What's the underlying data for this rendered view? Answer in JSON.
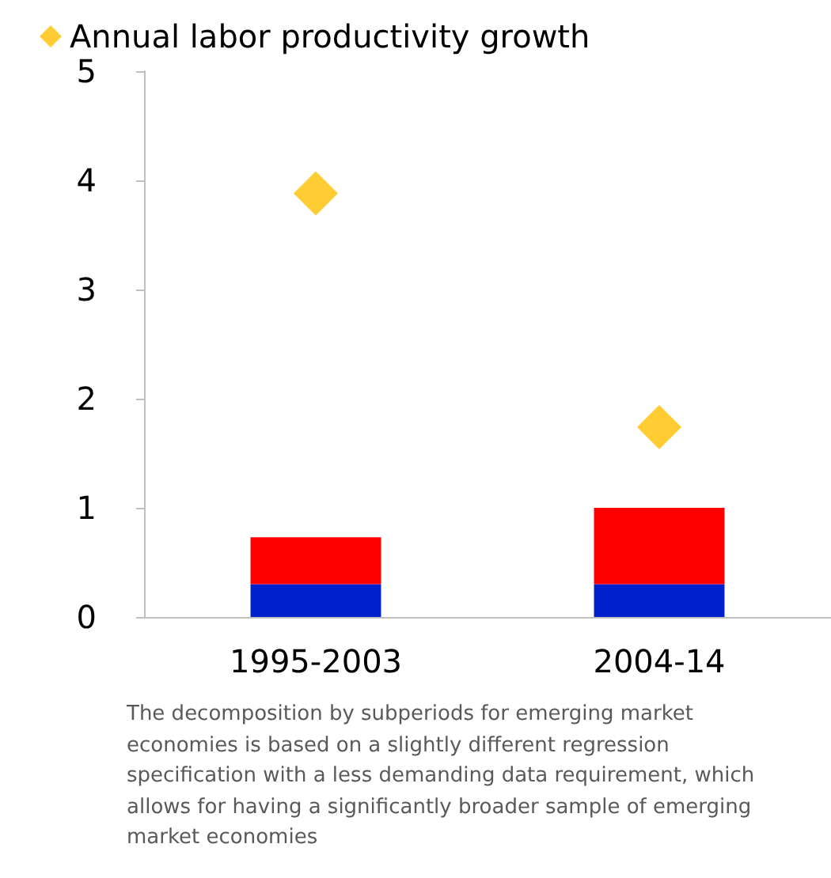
{
  "chart_data": {
    "type": "bar",
    "categories": [
      "1995-2003",
      "2004-14"
    ],
    "stacked": true,
    "series": [
      {
        "color": "#0020cc",
        "values": [
          0.3,
          0.3
        ]
      },
      {
        "color": "#ff0000",
        "values": [
          0.43,
          0.7
        ]
      },
      {
        "type": "scatter",
        "name": "Annual labor productivity growth",
        "color": "#ffc000",
        "x": [
          "1995-2003",
          "2004-14"
        ],
        "values": [
          3.88,
          1.74
        ]
      }
    ],
    "ylim": [
      0,
      5
    ],
    "yticks": [
      0,
      1,
      2,
      3,
      4,
      5
    ],
    "grid": false,
    "legend": "top left",
    "marker": "diamond",
    "annotations": [
      "The decomposition by subperiods for emerging market economies is based on a slightly different regression specification with a less demanding data requirement, which allows for having a significantly broader sample of emerging market economies"
    ]
  }
}
